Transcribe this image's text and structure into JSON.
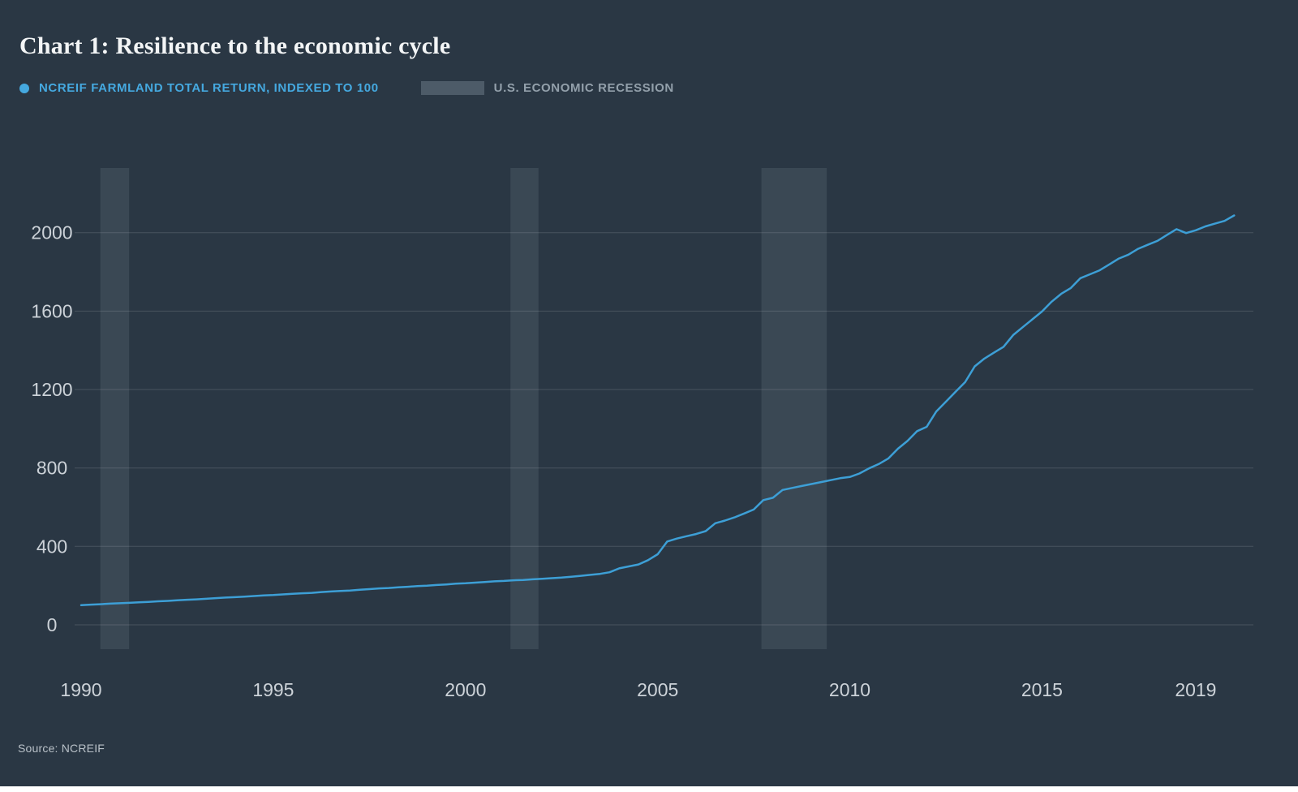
{
  "page": {
    "title": "Chart 1: Resilience to the economic cycle",
    "source": "Source: NCREIF"
  },
  "legend": {
    "series_label": "NCREIF FARMLAND TOTAL RETURN, INDEXED TO 100",
    "recession_label": "U.S. ECONOMIC RECESSION"
  },
  "colors": {
    "background": "#2a3744",
    "line": "#3d9fd6",
    "legend_series_text": "#45a9e0",
    "legend_recession_text": "#93a0ab",
    "recession_band": "#46545f",
    "legend_swatch": "#4d5b68",
    "grid": "rgba(255,255,255,0.14)",
    "tick_text": "#ccd2d8"
  },
  "chart_data": {
    "type": "line",
    "title": "Chart 1: Resilience to the economic cycle",
    "xlabel": "",
    "ylabel": "",
    "x_ticks": [
      1990,
      1995,
      2000,
      2005,
      2010,
      2015,
      2019
    ],
    "y_ticks": [
      0,
      400,
      800,
      1200,
      1600,
      2000
    ],
    "x_range": [
      1990,
      2020.5
    ],
    "y_range": [
      0,
      2330
    ],
    "grid": "horizontal",
    "legend_position": "top",
    "recession_bands": [
      [
        1990.5,
        1991.25
      ],
      [
        2001.17,
        2001.9
      ],
      [
        2007.7,
        2009.4
      ]
    ],
    "series": [
      {
        "name": "NCREIF Farmland Total Return, indexed to 100",
        "points": [
          [
            1990.0,
            100
          ],
          [
            1990.25,
            103
          ],
          [
            1990.5,
            105
          ],
          [
            1990.75,
            108
          ],
          [
            1991.0,
            110
          ],
          [
            1991.25,
            112
          ],
          [
            1991.5,
            115
          ],
          [
            1991.75,
            117
          ],
          [
            1992.0,
            120
          ],
          [
            1992.25,
            122
          ],
          [
            1992.5,
            125
          ],
          [
            1992.75,
            128
          ],
          [
            1993.0,
            130
          ],
          [
            1993.25,
            133
          ],
          [
            1993.5,
            136
          ],
          [
            1993.75,
            139
          ],
          [
            1994.0,
            141
          ],
          [
            1994.25,
            144
          ],
          [
            1994.5,
            147
          ],
          [
            1994.75,
            150
          ],
          [
            1995.0,
            152
          ],
          [
            1995.25,
            155
          ],
          [
            1995.5,
            158
          ],
          [
            1995.75,
            161
          ],
          [
            1996.0,
            163
          ],
          [
            1996.25,
            167
          ],
          [
            1996.5,
            170
          ],
          [
            1996.75,
            173
          ],
          [
            1997.0,
            175
          ],
          [
            1997.25,
            179
          ],
          [
            1997.5,
            182
          ],
          [
            1997.75,
            186
          ],
          [
            1998.0,
            188
          ],
          [
            1998.25,
            191
          ],
          [
            1998.5,
            194
          ],
          [
            1998.75,
            198
          ],
          [
            1999.0,
            200
          ],
          [
            1999.25,
            203
          ],
          [
            1999.5,
            206
          ],
          [
            1999.75,
            210
          ],
          [
            2000.0,
            212
          ],
          [
            2000.25,
            215
          ],
          [
            2000.5,
            218
          ],
          [
            2000.75,
            222
          ],
          [
            2001.0,
            224
          ],
          [
            2001.25,
            227
          ],
          [
            2001.5,
            229
          ],
          [
            2001.75,
            232
          ],
          [
            2002.0,
            235
          ],
          [
            2002.25,
            238
          ],
          [
            2002.5,
            241
          ],
          [
            2002.75,
            245
          ],
          [
            2003.0,
            250
          ],
          [
            2003.25,
            255
          ],
          [
            2003.5,
            260
          ],
          [
            2003.75,
            268
          ],
          [
            2004.0,
            288
          ],
          [
            2004.25,
            298
          ],
          [
            2004.5,
            308
          ],
          [
            2004.75,
            330
          ],
          [
            2005.0,
            360
          ],
          [
            2005.25,
            425
          ],
          [
            2005.5,
            440
          ],
          [
            2005.75,
            452
          ],
          [
            2006.0,
            463
          ],
          [
            2006.25,
            478
          ],
          [
            2006.5,
            518
          ],
          [
            2006.75,
            532
          ],
          [
            2007.0,
            548
          ],
          [
            2007.25,
            568
          ],
          [
            2007.5,
            588
          ],
          [
            2007.75,
            636
          ],
          [
            2008.0,
            648
          ],
          [
            2008.25,
            688
          ],
          [
            2008.5,
            698
          ],
          [
            2008.75,
            708
          ],
          [
            2009.0,
            718
          ],
          [
            2009.25,
            728
          ],
          [
            2009.5,
            738
          ],
          [
            2009.75,
            748
          ],
          [
            2010.0,
            754
          ],
          [
            2010.25,
            772
          ],
          [
            2010.5,
            798
          ],
          [
            2010.75,
            820
          ],
          [
            2011.0,
            848
          ],
          [
            2011.25,
            898
          ],
          [
            2011.5,
            938
          ],
          [
            2011.75,
            988
          ],
          [
            2012.0,
            1010
          ],
          [
            2012.25,
            1088
          ],
          [
            2012.5,
            1138
          ],
          [
            2012.75,
            1188
          ],
          [
            2013.0,
            1238
          ],
          [
            2013.25,
            1318
          ],
          [
            2013.5,
            1358
          ],
          [
            2013.75,
            1388
          ],
          [
            2014.0,
            1418
          ],
          [
            2014.25,
            1478
          ],
          [
            2014.5,
            1518
          ],
          [
            2014.75,
            1558
          ],
          [
            2015.0,
            1598
          ],
          [
            2015.25,
            1648
          ],
          [
            2015.5,
            1688
          ],
          [
            2015.75,
            1718
          ],
          [
            2016.0,
            1768
          ],
          [
            2016.25,
            1788
          ],
          [
            2016.5,
            1808
          ],
          [
            2016.75,
            1838
          ],
          [
            2017.0,
            1868
          ],
          [
            2017.25,
            1888
          ],
          [
            2017.5,
            1918
          ],
          [
            2017.75,
            1938
          ],
          [
            2018.0,
            1958
          ],
          [
            2018.25,
            1988
          ],
          [
            2018.5,
            2018
          ],
          [
            2018.75,
            1998
          ],
          [
            2019.0,
            2012
          ],
          [
            2019.25,
            2032
          ],
          [
            2019.5,
            2046
          ],
          [
            2019.75,
            2060
          ],
          [
            2020.0,
            2088
          ]
        ]
      }
    ]
  }
}
